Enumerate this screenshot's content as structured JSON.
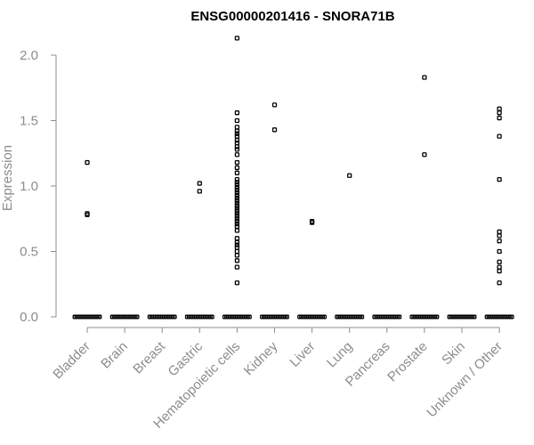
{
  "chart_data": {
    "type": "scatter",
    "title": "ENSG00000201416 - SNORA71B",
    "xlabel": "",
    "ylabel": "Expression",
    "ylim": [
      0,
      2.15
    ],
    "yticks": [
      "0.0",
      "0.5",
      "1.0",
      "1.5",
      "2.0"
    ],
    "ytick_values": [
      0,
      0.5,
      1.0,
      1.5,
      2.0
    ],
    "grid": false,
    "legend": "none",
    "categories": [
      "Bladder",
      "Brain",
      "Breast",
      "Gastric",
      "Hematopoietic cells",
      "Kidney",
      "Liver",
      "Lung",
      "Pancreas",
      "Prostate",
      "Skin",
      "Unknown / Other"
    ],
    "zero_cluster": true,
    "nonzero_points": [
      {
        "category": "Bladder",
        "values": [
          1.18,
          0.79,
          0.78
        ]
      },
      {
        "category": "Brain",
        "values": []
      },
      {
        "category": "Breast",
        "values": []
      },
      {
        "category": "Gastric",
        "values": [
          1.02,
          0.96
        ]
      },
      {
        "category": "Hematopoietic cells",
        "values": [
          2.13,
          1.56,
          1.5,
          1.45,
          1.42,
          1.4,
          1.38,
          1.35,
          1.33,
          1.3,
          1.28,
          1.24,
          1.18,
          1.14,
          1.1,
          1.05,
          1.03,
          1.01,
          0.99,
          0.97,
          0.95,
          0.93,
          0.91,
          0.89,
          0.87,
          0.85,
          0.83,
          0.81,
          0.79,
          0.77,
          0.75,
          0.73,
          0.71,
          0.69,
          0.66,
          0.6,
          0.57,
          0.55,
          0.53,
          0.5,
          0.47,
          0.43,
          0.38,
          0.26
        ]
      },
      {
        "category": "Kidney",
        "values": [
          1.62,
          1.43
        ]
      },
      {
        "category": "Liver",
        "values": [
          0.73,
          0.72
        ]
      },
      {
        "category": "Lung",
        "values": [
          1.08
        ]
      },
      {
        "category": "Pancreas",
        "values": []
      },
      {
        "category": "Prostate",
        "values": [
          1.83,
          1.24
        ]
      },
      {
        "category": "Skin",
        "values": []
      },
      {
        "category": "Unknown / Other",
        "values": [
          1.59,
          1.56,
          1.52,
          1.38,
          1.05,
          0.65,
          0.62,
          0.58,
          0.5,
          0.42,
          0.38,
          0.35,
          0.26
        ]
      }
    ]
  },
  "colors": {
    "axis": "#8c8c8c",
    "points": "#000000",
    "title": "#000000"
  }
}
